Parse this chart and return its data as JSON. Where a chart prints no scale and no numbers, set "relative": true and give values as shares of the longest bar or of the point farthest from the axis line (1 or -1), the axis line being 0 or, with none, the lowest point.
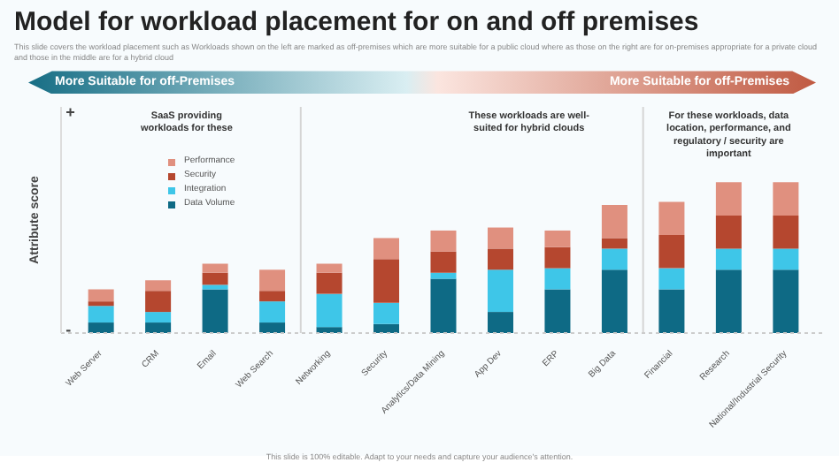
{
  "chart_data": {
    "type": "bar",
    "title": "Model for workload placement for on and off premises",
    "subtitle": "This slide covers the workload placement such as Workloads shown on the left are marked as off-premises which are more suitable for a public cloud where as those on the right are for on-premises appropriate for a private cloud and those in the middle are for a hybrid cloud",
    "ylabel": "Attribute score",
    "categories": [
      "Web Server",
      "CRM",
      "Email",
      "Web Search",
      "Networking",
      "Security",
      "Analytics/Data Mining",
      "App Dev",
      "ERP",
      "Big Data",
      "Financial",
      "Research",
      "National/Industrial Security"
    ],
    "relative": true,
    "stacked": true,
    "legend": "top left",
    "grid": false,
    "series": [
      {
        "name": "Data Volume",
        "color": "#0e6a85",
        "values": [
          0.07,
          0.07,
          0.29,
          0.07,
          0.04,
          0.06,
          0.36,
          0.14,
          0.29,
          0.42,
          0.29,
          0.42,
          0.42
        ]
      },
      {
        "name": "Integration",
        "color": "#3ec6e8",
        "values": [
          0.11,
          0.07,
          0.03,
          0.14,
          0.22,
          0.14,
          0.04,
          0.28,
          0.14,
          0.14,
          0.14,
          0.14,
          0.14
        ]
      },
      {
        "name": "Security",
        "color": "#b5472f",
        "values": [
          0.03,
          0.14,
          0.08,
          0.07,
          0.14,
          0.29,
          0.14,
          0.14,
          0.14,
          0.07,
          0.22,
          0.22,
          0.22
        ]
      },
      {
        "name": "Performance",
        "color": "#e0907f",
        "values": [
          0.08,
          0.07,
          0.06,
          0.14,
          0.06,
          0.14,
          0.14,
          0.14,
          0.11,
          0.22,
          0.22,
          0.22,
          0.22
        ]
      }
    ],
    "annotations": [
      "More Suitable for off-Premises",
      "More Suitable for off-Premises",
      "+",
      "-",
      "SaaS providing workloads for these",
      "These workloads are well-suited for hybrid clouds",
      "For these workloads, data location, performance, and regulatory / security are important",
      "This slide is 100% editable. Adapt to your needs and capture your audience's attention."
    ]
  }
}
